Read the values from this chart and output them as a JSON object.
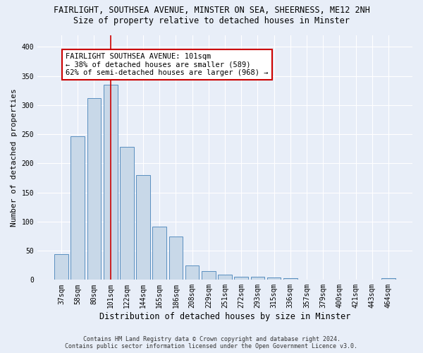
{
  "title_line1": "FAIRLIGHT, SOUTHSEA AVENUE, MINSTER ON SEA, SHEERNESS, ME12 2NH",
  "title_line2": "Size of property relative to detached houses in Minster",
  "xlabel": "Distribution of detached houses by size in Minster",
  "ylabel": "Number of detached properties",
  "categories": [
    "37sqm",
    "58sqm",
    "80sqm",
    "101sqm",
    "122sqm",
    "144sqm",
    "165sqm",
    "186sqm",
    "208sqm",
    "229sqm",
    "251sqm",
    "272sqm",
    "293sqm",
    "315sqm",
    "336sqm",
    "357sqm",
    "379sqm",
    "400sqm",
    "421sqm",
    "443sqm",
    "464sqm"
  ],
  "values": [
    44,
    246,
    312,
    335,
    228,
    180,
    91,
    74,
    25,
    15,
    9,
    5,
    5,
    4,
    3,
    0,
    0,
    0,
    0,
    0,
    3
  ],
  "bar_color": "#c8d8e8",
  "bar_edge_color": "#5a8fc0",
  "highlight_bar_index": 3,
  "vline_color": "#cc0000",
  "annotation_text": "FAIRLIGHT SOUTHSEA AVENUE: 101sqm\n← 38% of detached houses are smaller (589)\n62% of semi-detached houses are larger (968) →",
  "annotation_box_color": "white",
  "annotation_box_edge_color": "#cc0000",
  "ylim": [
    0,
    420
  ],
  "yticks": [
    0,
    50,
    100,
    150,
    200,
    250,
    300,
    350,
    400
  ],
  "footer_line1": "Contains HM Land Registry data © Crown copyright and database right 2024.",
  "footer_line2": "Contains public sector information licensed under the Open Government Licence v3.0.",
  "background_color": "#e8eef8",
  "plot_background_color": "#e8eef8",
  "grid_color": "white",
  "title_fontsize": 8.5,
  "subtitle_fontsize": 8.5,
  "axis_label_fontsize": 8,
  "tick_fontsize": 7,
  "annotation_fontsize": 7.5,
  "footer_fontsize": 6
}
